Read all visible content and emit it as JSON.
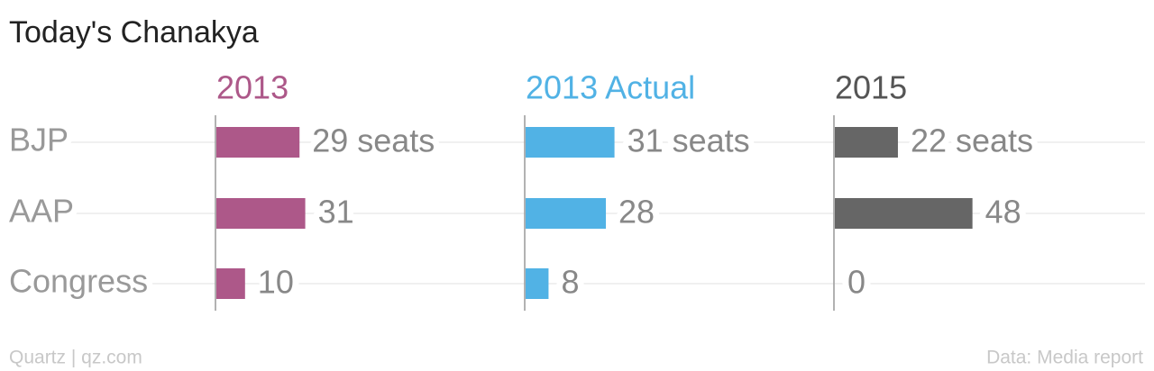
{
  "chart_data": {
    "type": "bar",
    "orientation": "horizontal",
    "title": "Today's Chanakya",
    "categories": [
      "BJP",
      "AAP",
      "Congress"
    ],
    "series": [
      {
        "name": "2013",
        "color": "#ad5889",
        "values": [
          29,
          31,
          10
        ],
        "value_labels": [
          "29 seats",
          "31",
          "10"
        ]
      },
      {
        "name": "2013 Actual",
        "color": "#51b2e5",
        "values": [
          31,
          28,
          8
        ],
        "value_labels": [
          "31 seats",
          "28",
          "8"
        ]
      },
      {
        "name": "2015",
        "color": "#666666",
        "values": [
          22,
          48,
          0
        ],
        "value_labels": [
          "22 seats",
          "48",
          "0"
        ]
      }
    ],
    "credit": "Quartz | qz.com",
    "source": "Data: Media report"
  }
}
